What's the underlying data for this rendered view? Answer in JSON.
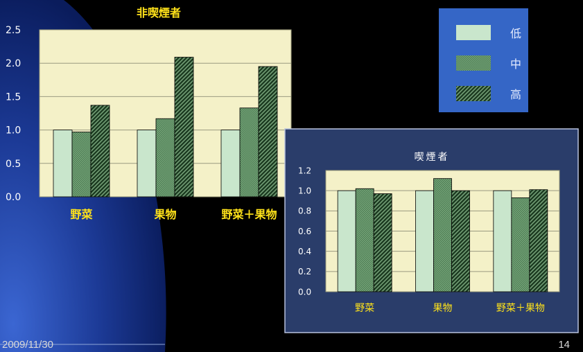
{
  "slide": {
    "date": "2009/11/30",
    "page_number": "14"
  },
  "legend": {
    "entries": [
      "低",
      "中",
      "高"
    ]
  },
  "chart_data": [
    {
      "type": "bar",
      "title": "非喫煙者",
      "categories": [
        "野菜",
        "果物",
        "野菜＋果物"
      ],
      "series": [
        {
          "name": "低",
          "values": [
            1.0,
            1.0,
            1.0
          ]
        },
        {
          "name": "中",
          "values": [
            0.97,
            1.17,
            1.33
          ]
        },
        {
          "name": "高",
          "values": [
            1.37,
            2.09,
            1.95
          ]
        }
      ],
      "yticks": [
        "0.0",
        "0.5",
        "1.0",
        "1.5",
        "2.0",
        "2.5"
      ],
      "ylim": [
        0,
        2.5
      ],
      "grid": true,
      "xlabel": "",
      "ylabel": ""
    },
    {
      "type": "bar",
      "title": "喫煙者",
      "categories": [
        "野菜",
        "果物",
        "野菜＋果物"
      ],
      "series": [
        {
          "name": "低",
          "values": [
            1.0,
            1.0,
            1.0
          ]
        },
        {
          "name": "中",
          "values": [
            1.02,
            1.12,
            0.93
          ]
        },
        {
          "name": "高",
          "values": [
            0.97,
            1.0,
            1.01
          ]
        }
      ],
      "yticks": [
        "0.0",
        "0.2",
        "0.4",
        "0.6",
        "0.8",
        "1.0",
        "1.2"
      ],
      "ylim": [
        0,
        1.2
      ],
      "grid": true,
      "xlabel": "",
      "ylabel": ""
    }
  ],
  "colors": {
    "low": "#c9e6cc",
    "mid": "#6a9a6e",
    "high": "#244a2a",
    "plot_bg": "#f4f1c8",
    "legend_bg": "#3566c6",
    "inset_bg": "#2a3d6a",
    "title_text": "#ffe21a",
    "axis_text": "#ffffff"
  }
}
